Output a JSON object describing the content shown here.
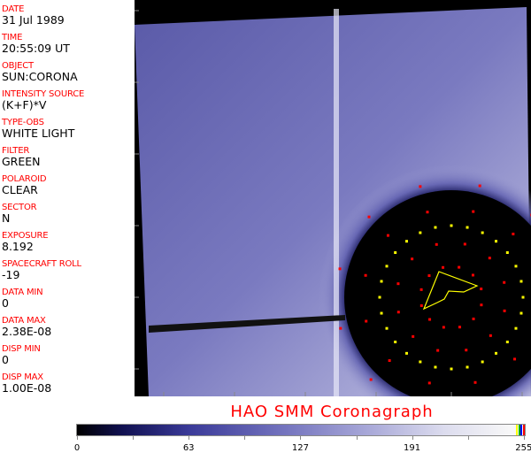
{
  "sidebar": {
    "fields": [
      {
        "label": "DATE",
        "value": "31 Jul 1989"
      },
      {
        "label": "TIME",
        "value": "20:55:09 UT"
      },
      {
        "label": "OBJECT",
        "value": "SUN:CORONA"
      },
      {
        "label": "INTENSITY SOURCE",
        "value": "(K+F)*V"
      },
      {
        "label": "TYPE-OBS",
        "value": "WHITE LIGHT"
      },
      {
        "label": "FILTER",
        "value": "GREEN"
      },
      {
        "label": "POLAROID",
        "value": "CLEAR"
      },
      {
        "label": "SECTOR",
        "value": "N"
      },
      {
        "label": "EXPOSURE",
        "value": "8.192"
      },
      {
        "label": "SPACECRAFT ROLL",
        "value": "-19"
      },
      {
        "label": "DATA MIN",
        "value": "0"
      },
      {
        "label": "DATA MAX",
        "value": "2.38E-08"
      },
      {
        "label": "DISP MIN",
        "value": "0"
      },
      {
        "label": "DISP MAX",
        "value": "1.00E-08"
      }
    ]
  },
  "title": "HAO  SMM Coronagraph",
  "colorbar": {
    "ticks": [
      "0",
      "63",
      "127",
      "191",
      "255"
    ],
    "colors": {
      "low": "#000000",
      "mid": "#7070bc",
      "high": "#f8f8f8",
      "marker_red": "#ff0000",
      "marker_yellow": "#ffff00"
    }
  }
}
